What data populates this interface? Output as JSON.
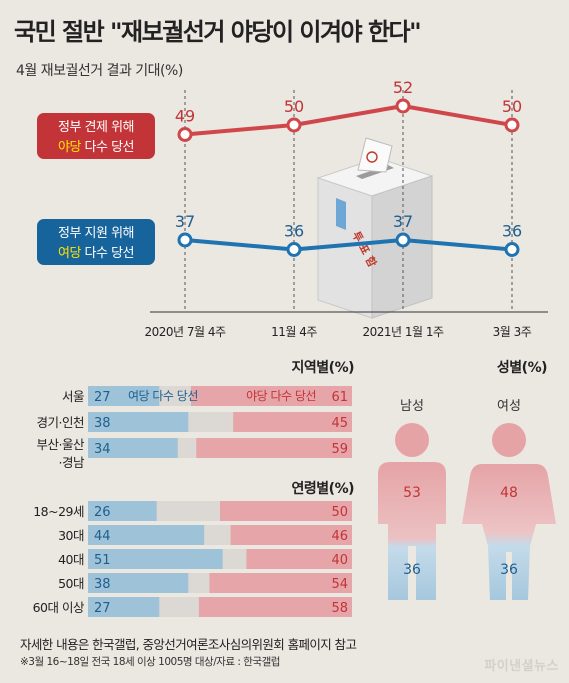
{
  "header": {
    "title": "국민 절반 \"재보궐선거 야당이 이겨야 한다\"",
    "subtitle": "4월 재보궐선거 결과 기대(%)"
  },
  "chart_data": [
    {
      "type": "line",
      "x": [
        "2020년 7월 4주",
        "11월 4주",
        "2021년 1월 1주",
        "3월 3주"
      ],
      "series": [
        {
          "name": "정부 견제 위해 야당 다수 당선",
          "label_line1": "정부 견제 위해",
          "label_hl": "야당",
          "label_rest": " 다수 당선",
          "color": "#d0474b",
          "values": [
            49,
            50,
            52,
            50
          ]
        },
        {
          "name": "정부 지원 위해 여당 다수 당선",
          "label_line1": "정부 지원 위해",
          "label_hl": "여당",
          "label_rest": " 다수 당선",
          "color": "#1f73b0",
          "values": [
            37,
            36,
            37,
            36
          ]
        }
      ]
    },
    {
      "type": "bar",
      "stacked": true,
      "title": "지역별(%)",
      "categories": [
        "서울",
        "경기·인천",
        "부산·울산·경남"
      ],
      "series": [
        {
          "name": "여당 다수 당선",
          "color": "#9ec2d8",
          "values": [
            27,
            38,
            34
          ]
        },
        {
          "name": "야당 다수 당선",
          "color": "#e6a5a8",
          "values": [
            61,
            45,
            59
          ]
        }
      ]
    },
    {
      "type": "bar",
      "stacked": true,
      "title": "연령별(%)",
      "categories": [
        "18~29세",
        "30대",
        "40대",
        "50대",
        "60대 이상"
      ],
      "series": [
        {
          "name": "여당 다수 당선",
          "values": [
            26,
            44,
            51,
            38,
            27
          ]
        },
        {
          "name": "야당 다수 당선",
          "values": [
            50,
            46,
            40,
            54,
            58
          ]
        }
      ]
    },
    {
      "type": "bar",
      "title": "성별(%)",
      "categories": [
        "남성",
        "여성"
      ],
      "series": [
        {
          "name": "야당 다수 당선",
          "values": [
            53,
            48
          ]
        },
        {
          "name": "여당 다수 당선",
          "values": [
            36,
            36
          ]
        }
      ]
    }
  ],
  "region_labels": {
    "city_line1": "부산·울산",
    "city_line2": "·경남"
  },
  "bar_legend": {
    "ruling": "여당 다수 당선",
    "opposition": "야당 다수 당선"
  },
  "ballot_box": {
    "text": "투표함"
  },
  "footer": {
    "note1": "자세한 내용은 한국갤럽, 중앙선거여론조사심의위원회 홈페이지 참고",
    "note2": "※3월 16~18일 전국 18세 이상 1005명 대상/자료 : 한국갤럽",
    "logo": "파이낸셜뉴스"
  },
  "colors": {
    "background": "#ebe7e1",
    "opposition_line": "#d0474b",
    "ruling_line": "#1f73b0",
    "opposition_bar": "#e6a5a8",
    "ruling_bar": "#9ec2d8",
    "neutral_bar": "#dcd9d4",
    "highlight_text": "#ffe200"
  }
}
